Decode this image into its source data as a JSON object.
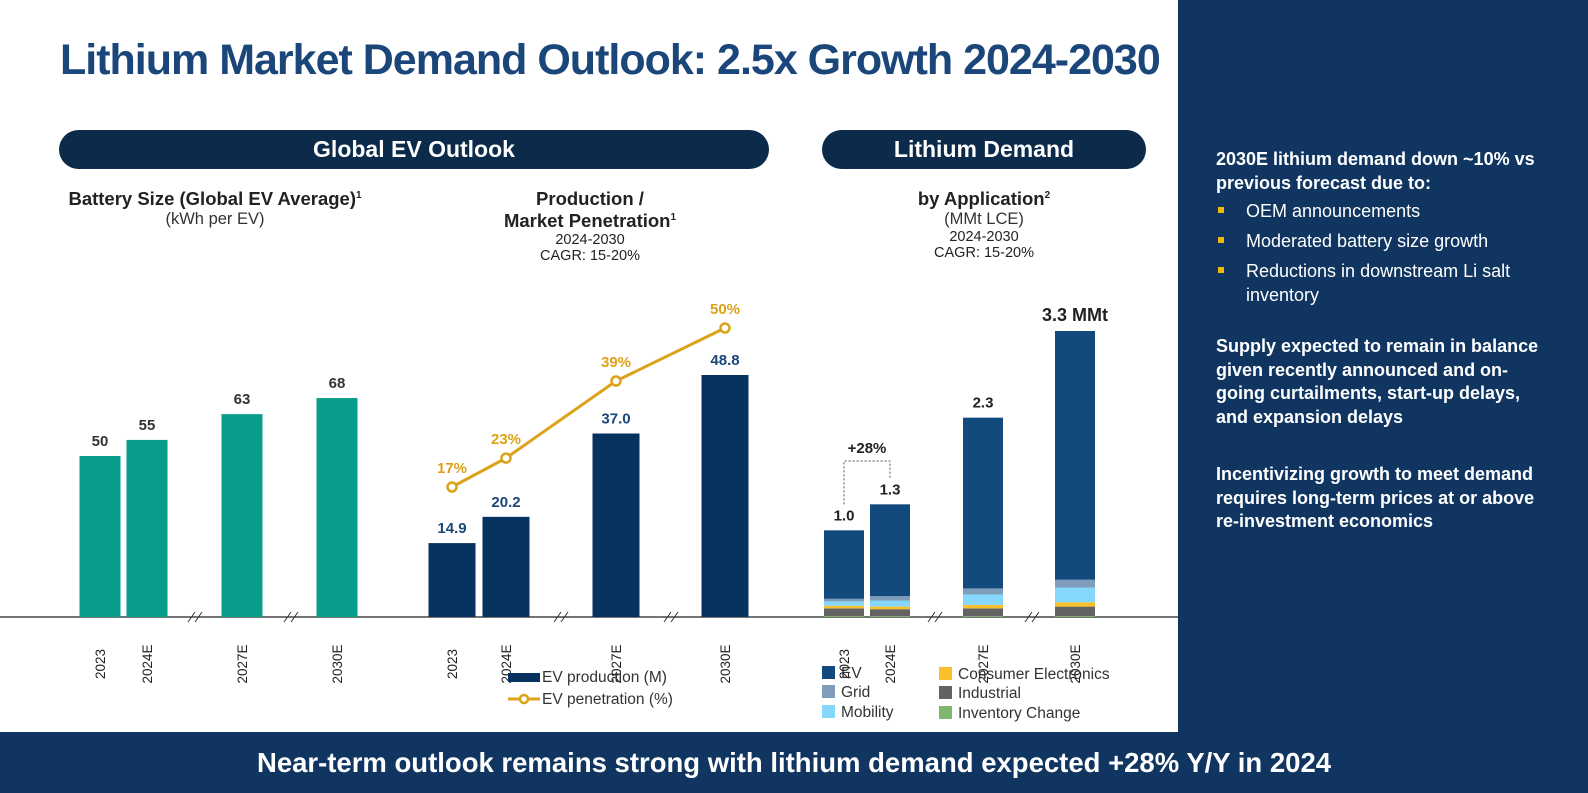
{
  "title": "Lithium Market Demand Outlook: 2.5x Growth 2024-2030",
  "sections": {
    "ev": "Global EV Outlook",
    "lithium": "Lithium Demand"
  },
  "footer": "Near-term outlook remains strong with lithium demand expected +28% Y/Y in 2024",
  "sidebar": {
    "heading": "2030E lithium demand down ~10% vs previous forecast due to:",
    "bullets": [
      "OEM announcements",
      "Moderated battery size growth",
      "Reductions in downstream Li salt inventory"
    ],
    "para1": "Supply expected to remain in balance given recently announced and on-going curtailments, start-up delays, and expansion delays",
    "para2": "Incentivizing growth to meet demand requires long-term prices at or above re-investment economics"
  },
  "colors": {
    "teal": "#079d8a",
    "navy": "#07325f",
    "gold": "#dba21a",
    "ev": "#134a7e",
    "grid": "#7f9cba",
    "mobility": "#85d7fb",
    "consumer": "#f9c02b",
    "industrial": "#636363",
    "inventory": "#7fb66f"
  },
  "chart_data": [
    {
      "type": "bar",
      "title": "Battery Size (Global EV Average)",
      "title_sup": "1",
      "subtitle": "(kWh per EV)",
      "categories": [
        "2023",
        "2024E",
        "2027E",
        "2030E"
      ],
      "values": [
        50,
        55,
        63,
        68
      ],
      "labels": [
        "50",
        "55",
        "63",
        "68"
      ],
      "axis_breaks": [
        "2024E-2027E",
        "2027E-2030E"
      ]
    },
    {
      "type": "bar",
      "title": "Production /",
      "title2": "Market Penetration",
      "title_sup": "1",
      "period": "2024-2030",
      "cagr": "CAGR: 15-20%",
      "categories": [
        "2023",
        "2024E",
        "2027E",
        "2030E"
      ],
      "series": [
        {
          "name": "EV production (M)",
          "values": [
            14.9,
            20.2,
            37.0,
            48.8
          ],
          "labels": [
            "14.9",
            "20.2",
            "37.0",
            "48.8"
          ]
        },
        {
          "name": "EV penetration (%)",
          "type": "line",
          "values": [
            17,
            23,
            39,
            50
          ],
          "labels": [
            "17%",
            "23%",
            "39%",
            "50%"
          ]
        }
      ],
      "axis_breaks": [
        "2024E-2027E",
        "2027E-2030E"
      ]
    },
    {
      "type": "bar",
      "stacked": true,
      "title": "by Application",
      "title_sup": "2",
      "subtitle": "(MMt LCE)",
      "period": "2024-2030",
      "cagr": "CAGR: 15-20%",
      "categories": [
        "2023",
        "2024E",
        "2027E",
        "2030E"
      ],
      "totals": [
        1.0,
        1.3,
        2.3,
        3.3
      ],
      "total_labels": [
        "1.0",
        "1.3",
        "2.3",
        "3.3 MMt"
      ],
      "growth_annotation": "+28%",
      "series": [
        {
          "name": "Inventory Change",
          "values": [
            0.01,
            0.01,
            0.01,
            0.01
          ]
        },
        {
          "name": "Industrial",
          "values": [
            0.09,
            0.08,
            0.09,
            0.11
          ]
        },
        {
          "name": "Consumer Electronics",
          "values": [
            0.03,
            0.03,
            0.04,
            0.05
          ]
        },
        {
          "name": "Mobility",
          "values": [
            0.05,
            0.07,
            0.12,
            0.17
          ]
        },
        {
          "name": "Grid",
          "values": [
            0.03,
            0.05,
            0.07,
            0.09
          ]
        },
        {
          "name": "EV",
          "values": [
            0.79,
            1.06,
            1.97,
            2.87
          ]
        }
      ],
      "axis_breaks": [
        "2024E-2027E",
        "2027E-2030E"
      ]
    }
  ]
}
